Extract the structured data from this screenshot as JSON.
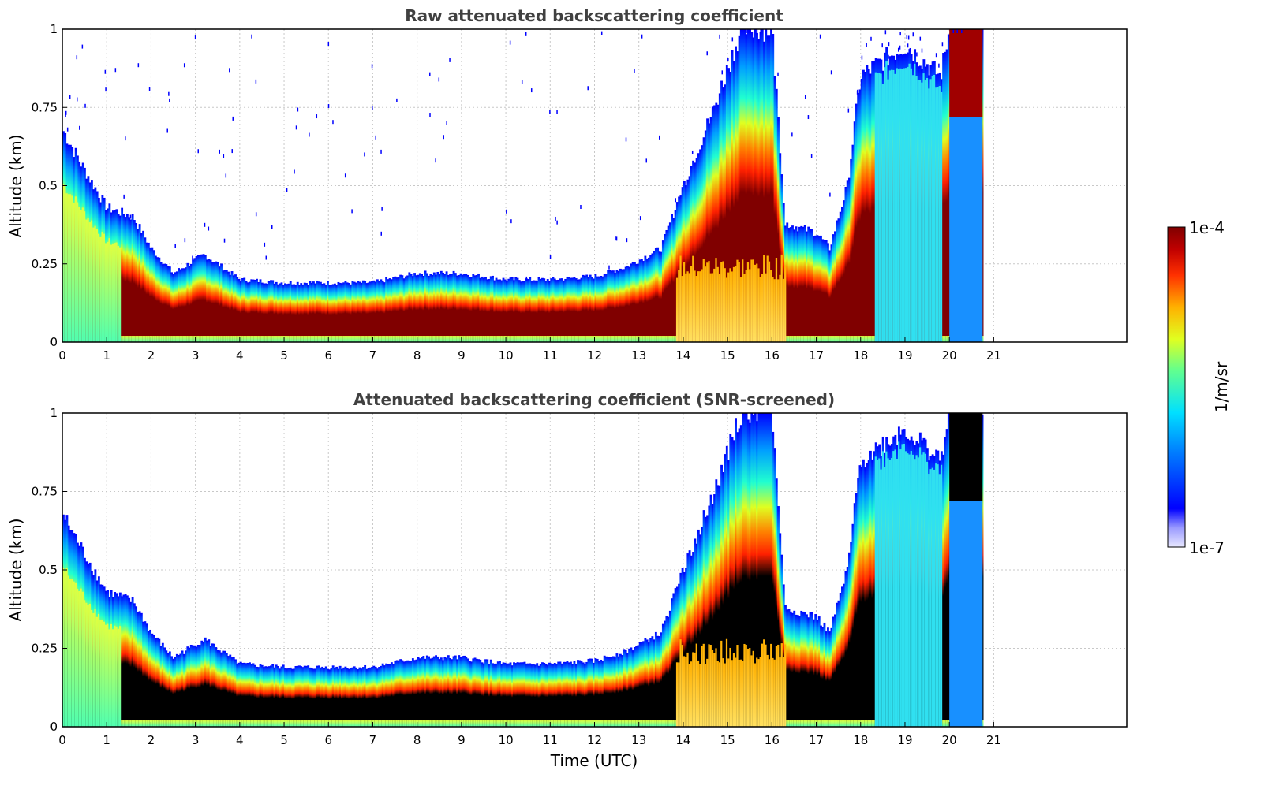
{
  "chart_data": [
    {
      "type": "heatmap",
      "title": "Raw attenuated backscattering coefficient",
      "xlabel": "",
      "ylabel": "Altitude (km)",
      "xlim": [
        0,
        24
      ],
      "ylim": [
        0,
        1
      ],
      "xticks": [
        "0",
        "1",
        "2",
        "3",
        "4",
        "5",
        "6",
        "7",
        "8",
        "9",
        "10",
        "11",
        "12",
        "13",
        "14",
        "15",
        "16",
        "17",
        "18",
        "19",
        "20",
        "21"
      ],
      "yticks": [
        "0",
        "0.25",
        "0.5",
        "0.75",
        "1"
      ],
      "grid": true,
      "data_end_hour": 20.75,
      "boundary_layer_top_km": [
        {
          "t": 0.0,
          "z": 0.68
        },
        {
          "t": 0.5,
          "z": 0.55
        },
        {
          "t": 1.0,
          "z": 0.43
        },
        {
          "t": 1.6,
          "z": 0.4
        },
        {
          "t": 2.0,
          "z": 0.3
        },
        {
          "t": 2.5,
          "z": 0.22
        },
        {
          "t": 3.2,
          "z": 0.28
        },
        {
          "t": 4.0,
          "z": 0.2
        },
        {
          "t": 5.0,
          "z": 0.19
        },
        {
          "t": 6.0,
          "z": 0.19
        },
        {
          "t": 7.0,
          "z": 0.19
        },
        {
          "t": 8.0,
          "z": 0.22
        },
        {
          "t": 9.0,
          "z": 0.22
        },
        {
          "t": 10.0,
          "z": 0.2
        },
        {
          "t": 11.0,
          "z": 0.2
        },
        {
          "t": 12.0,
          "z": 0.21
        },
        {
          "t": 12.7,
          "z": 0.24
        },
        {
          "t": 13.5,
          "z": 0.3
        },
        {
          "t": 14.0,
          "z": 0.5
        },
        {
          "t": 14.7,
          "z": 0.75
        },
        {
          "t": 15.3,
          "z": 1.0
        },
        {
          "t": 16.0,
          "z": 1.0
        },
        {
          "t": 16.3,
          "z": 0.38
        },
        {
          "t": 17.0,
          "z": 0.35
        },
        {
          "t": 17.3,
          "z": 0.3
        },
        {
          "t": 17.7,
          "z": 0.5
        },
        {
          "t": 18.0,
          "z": 0.85
        },
        {
          "t": 19.0,
          "z": 0.95
        },
        {
          "t": 19.8,
          "z": 0.85
        },
        {
          "t": 20.0,
          "z": 1.0
        },
        {
          "t": 20.7,
          "z": 1.0
        }
      ]
    },
    {
      "type": "heatmap",
      "title": "Attenuated backscattering coefficient (SNR-screened)",
      "xlabel": "Time (UTC)",
      "ylabel": "Altitude (km)",
      "xlim": [
        0,
        24
      ],
      "ylim": [
        0,
        1
      ],
      "xticks": [
        "0",
        "1",
        "2",
        "3",
        "4",
        "5",
        "6",
        "7",
        "8",
        "9",
        "10",
        "11",
        "12",
        "13",
        "14",
        "15",
        "16",
        "17",
        "18",
        "19",
        "20",
        "21"
      ],
      "yticks": [
        "0",
        "0.25",
        "0.5",
        "0.75",
        "1"
      ],
      "grid": true,
      "data_end_hour": 20.75,
      "saturated_color": "#000000"
    }
  ],
  "colorbar": {
    "label": "1/m/sr",
    "max_label": "1e-4",
    "min_label": "1e-7",
    "scale": "log",
    "range": [
      1e-07,
      0.0001
    ],
    "colormap": "jet"
  }
}
